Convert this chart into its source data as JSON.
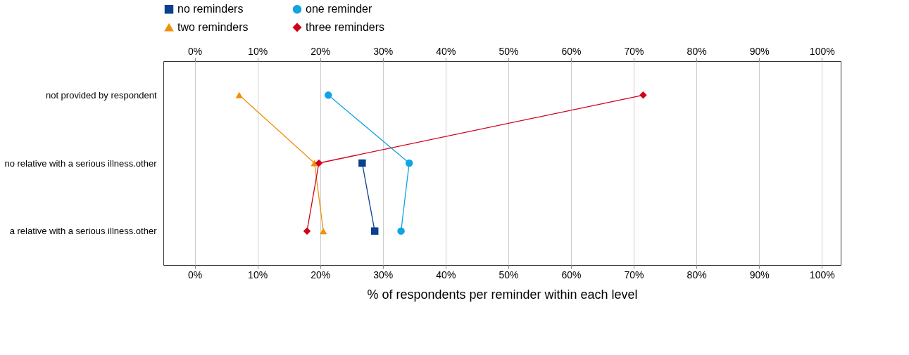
{
  "chart_data": {
    "type": "line",
    "orientation": "horizontal",
    "xlabel": "% of respondents per reminder within each level",
    "categories": [
      "not provided by respondent",
      "no relative with a serious illness.other",
      "a relative with a serious illness.other"
    ],
    "series": [
      {
        "name": "no reminders",
        "color": "#0b3f8f",
        "marker": "square",
        "values": [
          null,
          26.7,
          28.7
        ]
      },
      {
        "name": "one reminder",
        "color": "#10a4e3",
        "marker": "circle",
        "values": [
          21.3,
          34.2,
          32.9
        ]
      },
      {
        "name": "two reminders",
        "color": "#f0900a",
        "marker": "triangle",
        "values": [
          7.1,
          19.1,
          20.5
        ]
      },
      {
        "name": "three reminders",
        "color": "#d0021b",
        "marker": "diamond",
        "values": [
          71.5,
          19.8,
          17.9
        ]
      }
    ],
    "xlim": [
      -5,
      103
    ],
    "xticks": [
      {
        "value": 0,
        "label": "0%"
      },
      {
        "value": 10,
        "label": "10%"
      },
      {
        "value": 20,
        "label": "20%"
      },
      {
        "value": 30,
        "label": "30%"
      },
      {
        "value": 40,
        "label": "40%"
      },
      {
        "value": 50,
        "label": "50%"
      },
      {
        "value": 60,
        "label": "60%"
      },
      {
        "value": 70,
        "label": "70%"
      },
      {
        "value": 80,
        "label": "80%"
      },
      {
        "value": 90,
        "label": "90%"
      },
      {
        "value": 100,
        "label": "100%"
      }
    ],
    "x2lim": [
      -5,
      103
    ],
    "x2ticks": [
      {
        "value": 0,
        "label": "0%"
      },
      {
        "value": 10,
        "label": "10%"
      },
      {
        "value": 20,
        "label": "20%"
      },
      {
        "value": 30,
        "label": "30%"
      },
      {
        "value": 40,
        "label": "40%"
      },
      {
        "value": 50,
        "label": "50%"
      },
      {
        "value": 60,
        "label": "60%"
      },
      {
        "value": 70,
        "label": "70%"
      },
      {
        "value": 80,
        "label": "80%"
      },
      {
        "value": 90,
        "label": "90%"
      },
      {
        "value": 100,
        "label": "100%"
      }
    ],
    "grid": "x",
    "legend": "top",
    "line_style": "solid"
  }
}
